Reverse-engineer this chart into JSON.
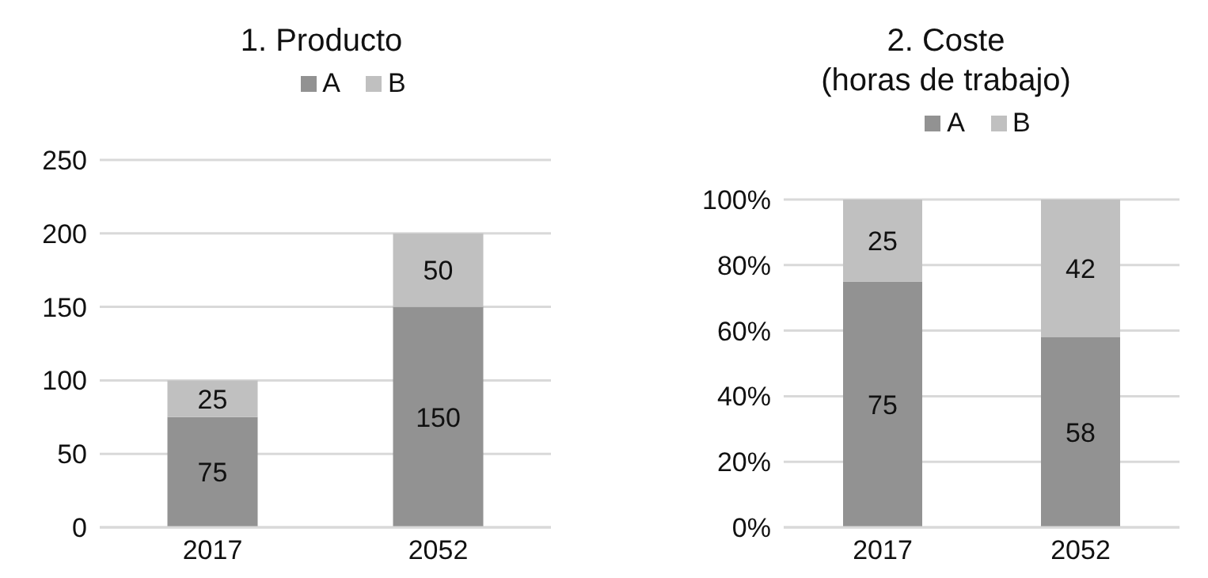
{
  "chart_data": [
    {
      "type": "bar",
      "title": "1. Producto",
      "categories": [
        "2017",
        "2052"
      ],
      "stacked": true,
      "data_labels": true,
      "legend": "top",
      "grid": "y",
      "ylim": [
        0,
        250
      ],
      "yticks": [
        0,
        50,
        100,
        150,
        200,
        250
      ],
      "series": [
        {
          "name": "A",
          "color": "#929292",
          "values": [
            75,
            150
          ]
        },
        {
          "name": "B",
          "color": "#c0c0c0",
          "values": [
            25,
            50
          ]
        }
      ]
    },
    {
      "type": "bar",
      "title": "2. Coste\n(horas de trabajo)",
      "categories": [
        "2017",
        "2052"
      ],
      "stacked": true,
      "data_labels": true,
      "legend": "top",
      "grid": "y",
      "ylim": [
        0,
        100
      ],
      "yticks": [
        {
          "value": 0,
          "label": "0%"
        },
        {
          "value": 20,
          "label": "20%"
        },
        {
          "value": 40,
          "label": "40%"
        },
        {
          "value": 60,
          "label": "60%"
        },
        {
          "value": 80,
          "label": "80%"
        },
        {
          "value": 100,
          "label": "100%"
        }
      ],
      "series": [
        {
          "name": "A",
          "color": "#929292",
          "values": [
            75,
            58
          ]
        },
        {
          "name": "B",
          "color": "#c0c0c0",
          "values": [
            25,
            42
          ]
        }
      ]
    }
  ]
}
